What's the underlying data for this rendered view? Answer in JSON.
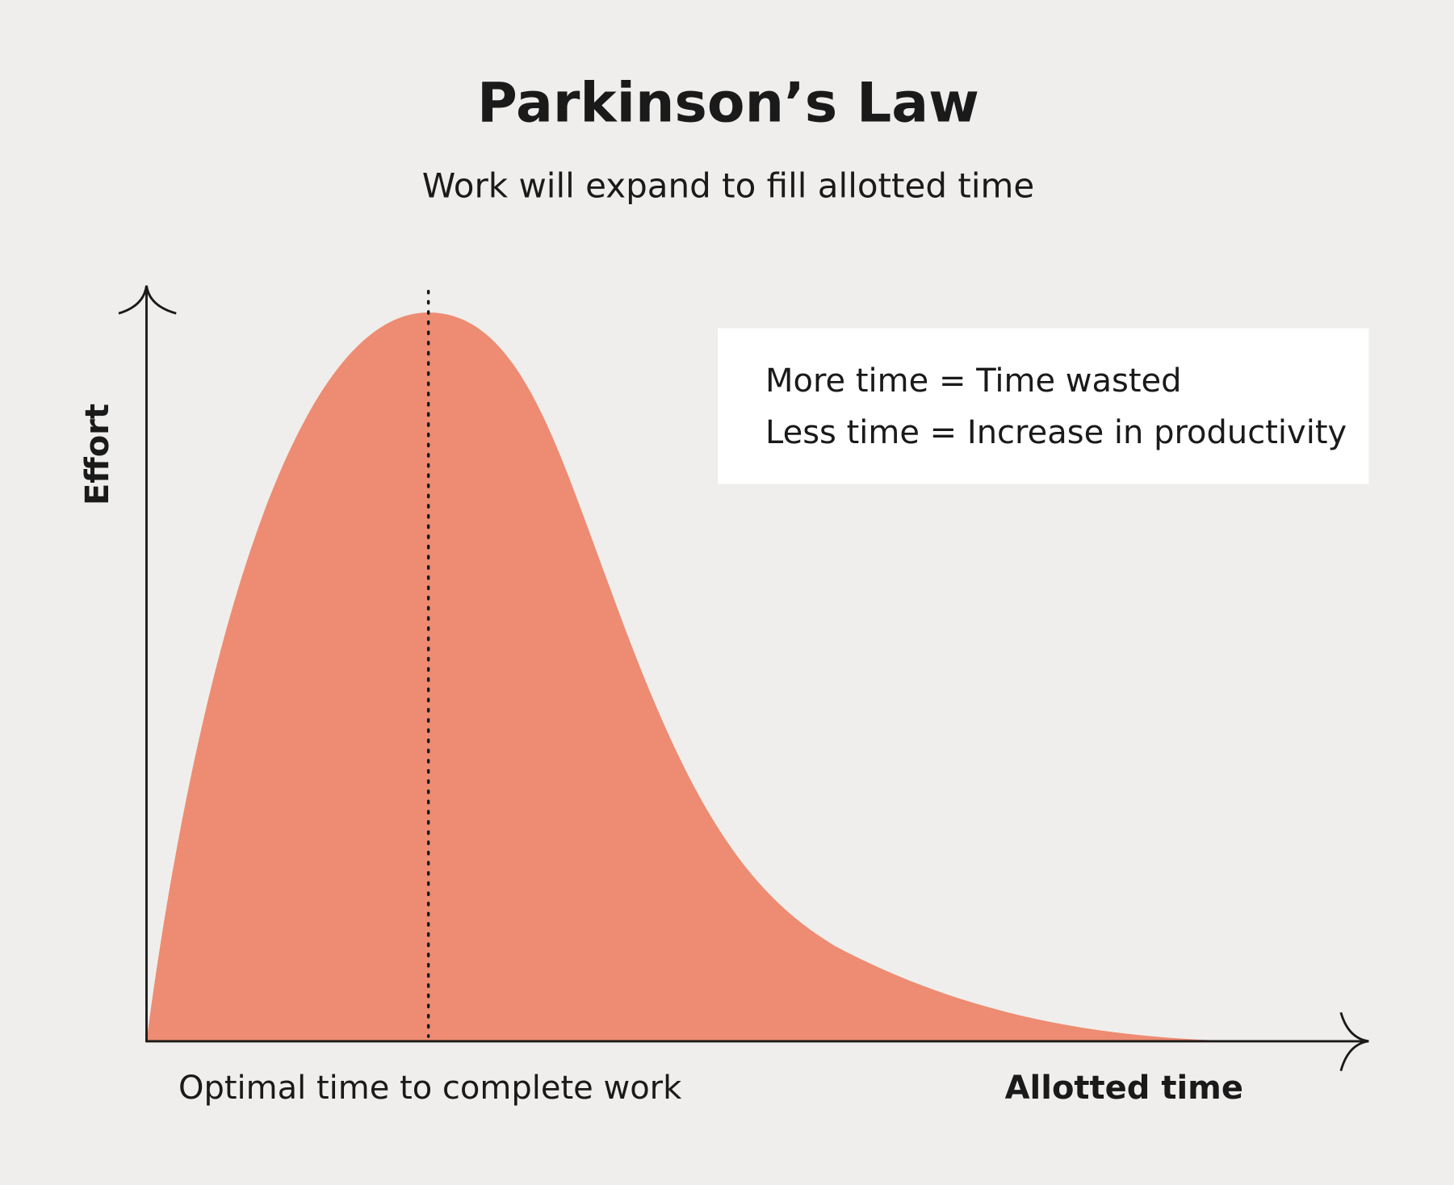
{
  "title": "Parkinson’s Law",
  "subtitle": "Work will expand to fill allotted time",
  "axes": {
    "y_label": "Effort",
    "x_label": "Allotted time"
  },
  "annotation": {
    "peak_label": "Optimal time to complete work"
  },
  "legend_box": {
    "lines": [
      "More time = Time wasted",
      "Less time = Increase in productivity"
    ]
  }
}
